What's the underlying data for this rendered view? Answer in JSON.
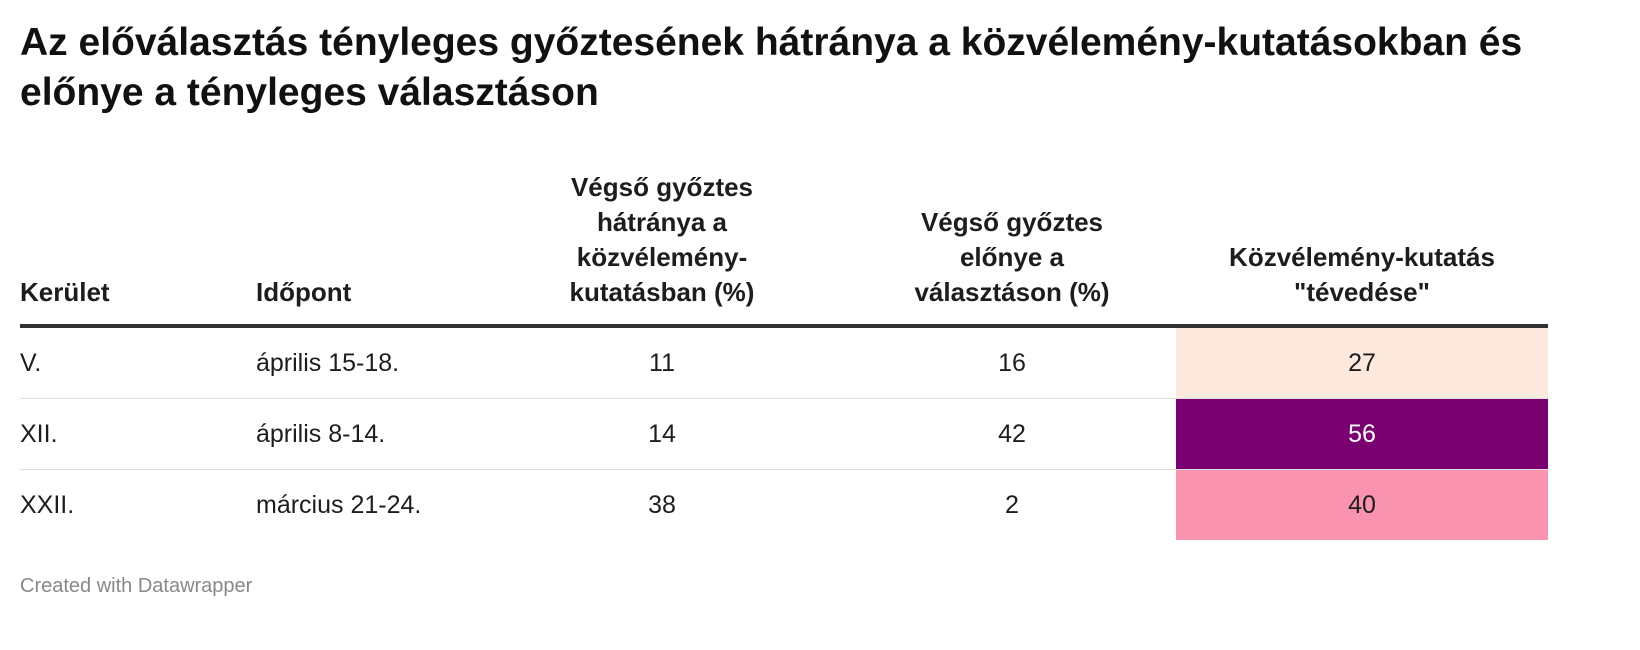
{
  "title": "Az előválasztás tényleges győztesének hátránya a közvélemény-kutatásokban és előnye a tényleges választáson",
  "table": {
    "columns": [
      "Kerület",
      "Időpont",
      "Végső győztes hátránya a közvélemény-kutatásban (%)",
      "Végső győztes előnye a választáson (%)",
      "Közvélemény-kutatás \"tévedése\""
    ],
    "rows": [
      [
        "V.",
        "április 15-18.",
        11,
        16,
        27
      ],
      [
        "XII.",
        "április 8-14.",
        14,
        42,
        56
      ],
      [
        "XXII.",
        "március 21-24.",
        38,
        2,
        40
      ]
    ]
  },
  "footer": "Created with Datawrapper"
}
